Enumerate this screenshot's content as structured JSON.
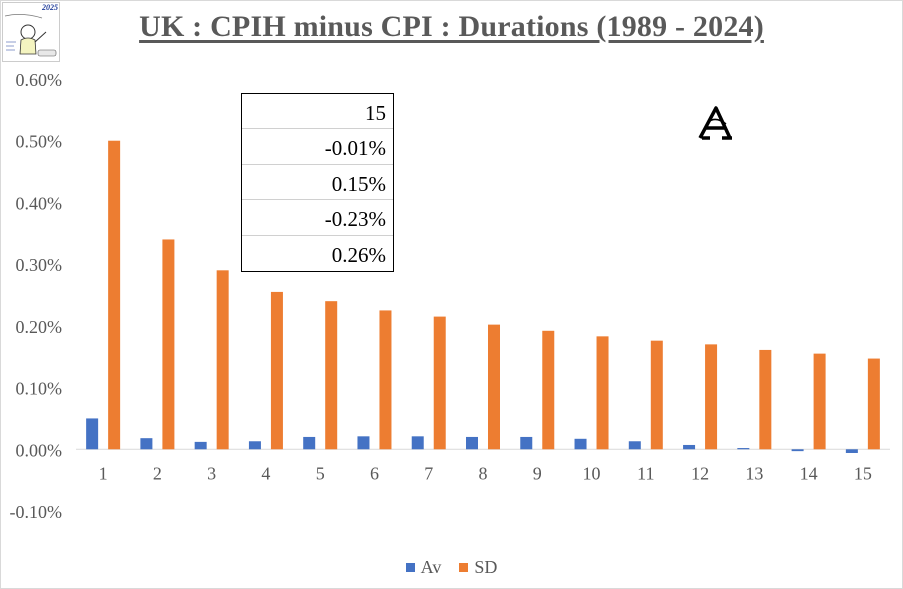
{
  "title": "UK : CPIH minus CPI : Durations (1989 - 2024)",
  "logo": {
    "year_text": "2025"
  },
  "stats_box": [
    "15",
    "-0.01%",
    "0.15%",
    "-0.23%",
    "0.26%"
  ],
  "colors": {
    "av": "#4472C4",
    "sd": "#ED7D31",
    "axis_text": "#595959",
    "grid": "#d9d9d9"
  },
  "chart_data": {
    "type": "bar",
    "categories": [
      "1",
      "2",
      "3",
      "4",
      "5",
      "6",
      "7",
      "8",
      "9",
      "10",
      "11",
      "12",
      "13",
      "14",
      "15"
    ],
    "series": [
      {
        "name": "Av",
        "values": [
          0.0005,
          0.00018,
          0.00012,
          0.00013,
          0.0002,
          0.00021,
          0.00021,
          0.0002,
          0.0002,
          0.00017,
          0.00013,
          7e-05,
          2e-05,
          -3e-05,
          -6e-05
        ]
      },
      {
        "name": "SD",
        "values": [
          0.005,
          0.0034,
          0.0029,
          0.00255,
          0.0024,
          0.00225,
          0.00215,
          0.00202,
          0.00192,
          0.00183,
          0.00176,
          0.0017,
          0.00161,
          0.00155,
          0.00147
        ]
      }
    ],
    "ylim": [
      -0.001,
      0.006
    ],
    "yticks": [
      "0.60%",
      "0.50%",
      "0.40%",
      "0.30%",
      "0.20%",
      "0.10%",
      "0.00%",
      "-0.10%"
    ],
    "legend_position": "bottom"
  }
}
